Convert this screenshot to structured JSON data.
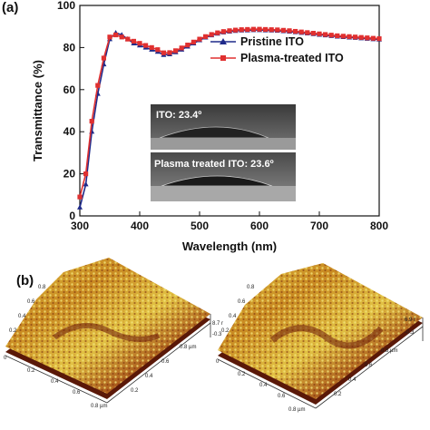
{
  "panel_a": {
    "label": "(a)"
  },
  "panel_b": {
    "label": "(b)"
  },
  "chart_data": {
    "type": "line",
    "xlabel": "Wavelength (nm)",
    "ylabel": "Transmittance (%)",
    "xlim": [
      300,
      800
    ],
    "ylim": [
      0,
      100
    ],
    "xticks": [
      "300",
      "400",
      "500",
      "600",
      "700",
      "800"
    ],
    "yticks": [
      "0",
      "20",
      "40",
      "60",
      "80",
      "100"
    ],
    "grid": false,
    "legend": "right",
    "series": [
      {
        "name": "Pristine ITO",
        "color": "#1f2a8a",
        "marker": "triangle",
        "x": [
          300,
          310,
          320,
          330,
          340,
          350,
          360,
          370,
          380,
          390,
          400,
          410,
          420,
          430,
          440,
          450,
          460,
          470,
          480,
          490,
          500,
          510,
          520,
          530,
          540,
          550,
          560,
          570,
          580,
          590,
          600,
          610,
          620,
          630,
          640,
          650,
          660,
          670,
          680,
          690,
          700,
          710,
          720,
          730,
          740,
          750,
          760,
          770,
          780,
          790,
          800
        ],
        "y": [
          4,
          15,
          40,
          58,
          72,
          84,
          87,
          86,
          84,
          82,
          81,
          80,
          79,
          78,
          76.5,
          76.8,
          77.8,
          79,
          80.5,
          82,
          83.5,
          84.8,
          85.8,
          86.6,
          87.2,
          87.6,
          87.9,
          88.1,
          88.2,
          88.3,
          88.3,
          88.2,
          88.1,
          88,
          87.8,
          87.6,
          87.3,
          87,
          86.7,
          86.4,
          86.1,
          85.8,
          85.5,
          85.2,
          85,
          84.8,
          84.6,
          84.4,
          84.2,
          84,
          83.8
        ]
      },
      {
        "name": "Plasma-treated ITO",
        "color": "#e03030",
        "marker": "square",
        "x": [
          300,
          310,
          320,
          330,
          340,
          350,
          360,
          370,
          380,
          390,
          400,
          410,
          420,
          430,
          440,
          450,
          460,
          470,
          480,
          490,
          500,
          510,
          520,
          530,
          540,
          550,
          560,
          570,
          580,
          590,
          600,
          610,
          620,
          630,
          640,
          650,
          660,
          670,
          680,
          690,
          700,
          710,
          720,
          730,
          740,
          750,
          760,
          770,
          780,
          790,
          800
        ],
        "y": [
          9,
          20,
          45,
          62,
          75,
          85,
          86,
          85,
          84,
          83,
          82,
          81,
          80,
          79,
          77.5,
          77.6,
          78.5,
          79.8,
          81.2,
          82.6,
          84,
          85.2,
          86.2,
          87,
          87.6,
          88,
          88.3,
          88.5,
          88.6,
          88.7,
          88.7,
          88.6,
          88.5,
          88.4,
          88.2,
          88,
          87.7,
          87.4,
          87.1,
          86.8,
          86.5,
          86.2,
          85.9,
          85.6,
          85.4,
          85.2,
          85,
          84.8,
          84.6,
          84.4,
          84.2
        ]
      }
    ]
  },
  "inset": {
    "top_label": "ITO: 23.4º",
    "bottom_label": "Plasma treated ITO: 23.6º"
  },
  "afm_left": {
    "z_top": "8.7 r",
    "z_bottom": "-0.3",
    "ticks_left": [
      "0.8",
      "0.6",
      "0.4",
      "0.2",
      "0",
      "0.2",
      "0.4",
      "0.6",
      "0.8 µm"
    ],
    "ticks_right": [
      "0.8 µm",
      "0.6",
      "0.4",
      "0.2"
    ]
  },
  "afm_right": {
    "z_top": "6.9 r",
    "z_bottom": "-0.3",
    "ticks_left": [
      "0.8",
      "0.6",
      "0.4",
      "0.2",
      "0",
      "0.2",
      "0.4",
      "0.6",
      "0.8 µm"
    ],
    "ticks_right": [
      "0.8 µm",
      "0.6",
      "0.4",
      "0.2"
    ]
  },
  "colors": {
    "afm_dark": "#6b1a0a",
    "afm_mid": "#b8661a",
    "afm_light": "#e8d24a"
  }
}
